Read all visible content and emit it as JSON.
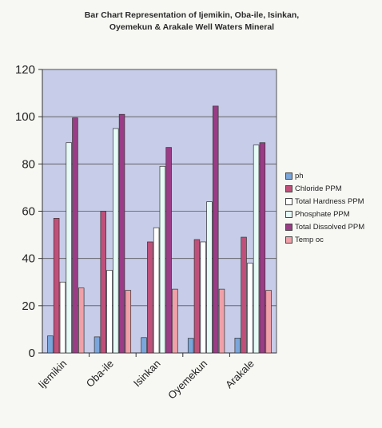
{
  "chart_data": {
    "type": "bar",
    "title": "Bar Chart Representation of Ijemikin, Oba-ile, Isinkan, Oyemekun & Arakale Well Waters Mineral",
    "title_lines": [
      "Bar Chart Representation of Ijemikin, Oba-ile, Isinkan,",
      "Oyemekun & Arakale Well Waters Mineral"
    ],
    "categories": [
      "Ijemikin",
      "Oba-ile",
      "Isinkan",
      "Oyemekun",
      "Arakale"
    ],
    "series": [
      {
        "name": "ph",
        "color": "#7aa6dc",
        "values": [
          7.2,
          6.8,
          6.5,
          6.2,
          6.3
        ]
      },
      {
        "name": "Chloride PPM",
        "color": "#c0507a",
        "values": [
          57,
          60,
          47,
          48,
          49
        ]
      },
      {
        "name": "Total Hardness PPM",
        "color": "#ffffff",
        "values": [
          30,
          35,
          53,
          47,
          38
        ]
      },
      {
        "name": "Phosphate PPM",
        "color": "#e6fbf6",
        "values": [
          89,
          95,
          79,
          64,
          88
        ]
      },
      {
        "name": "Total Dissolved PPM",
        "color": "#9a3c86",
        "values": [
          99.5,
          101,
          87,
          104.5,
          89
        ]
      },
      {
        "name": "Temp oc",
        "color": "#f0a0a8",
        "values": [
          27.5,
          26.5,
          27,
          27,
          26.5
        ]
      }
    ],
    "ylim": [
      0,
      120
    ],
    "yticks": [
      0,
      20,
      40,
      60,
      80,
      100,
      120
    ],
    "grid": true,
    "legend": "right",
    "xlabel": "",
    "ylabel": ""
  }
}
